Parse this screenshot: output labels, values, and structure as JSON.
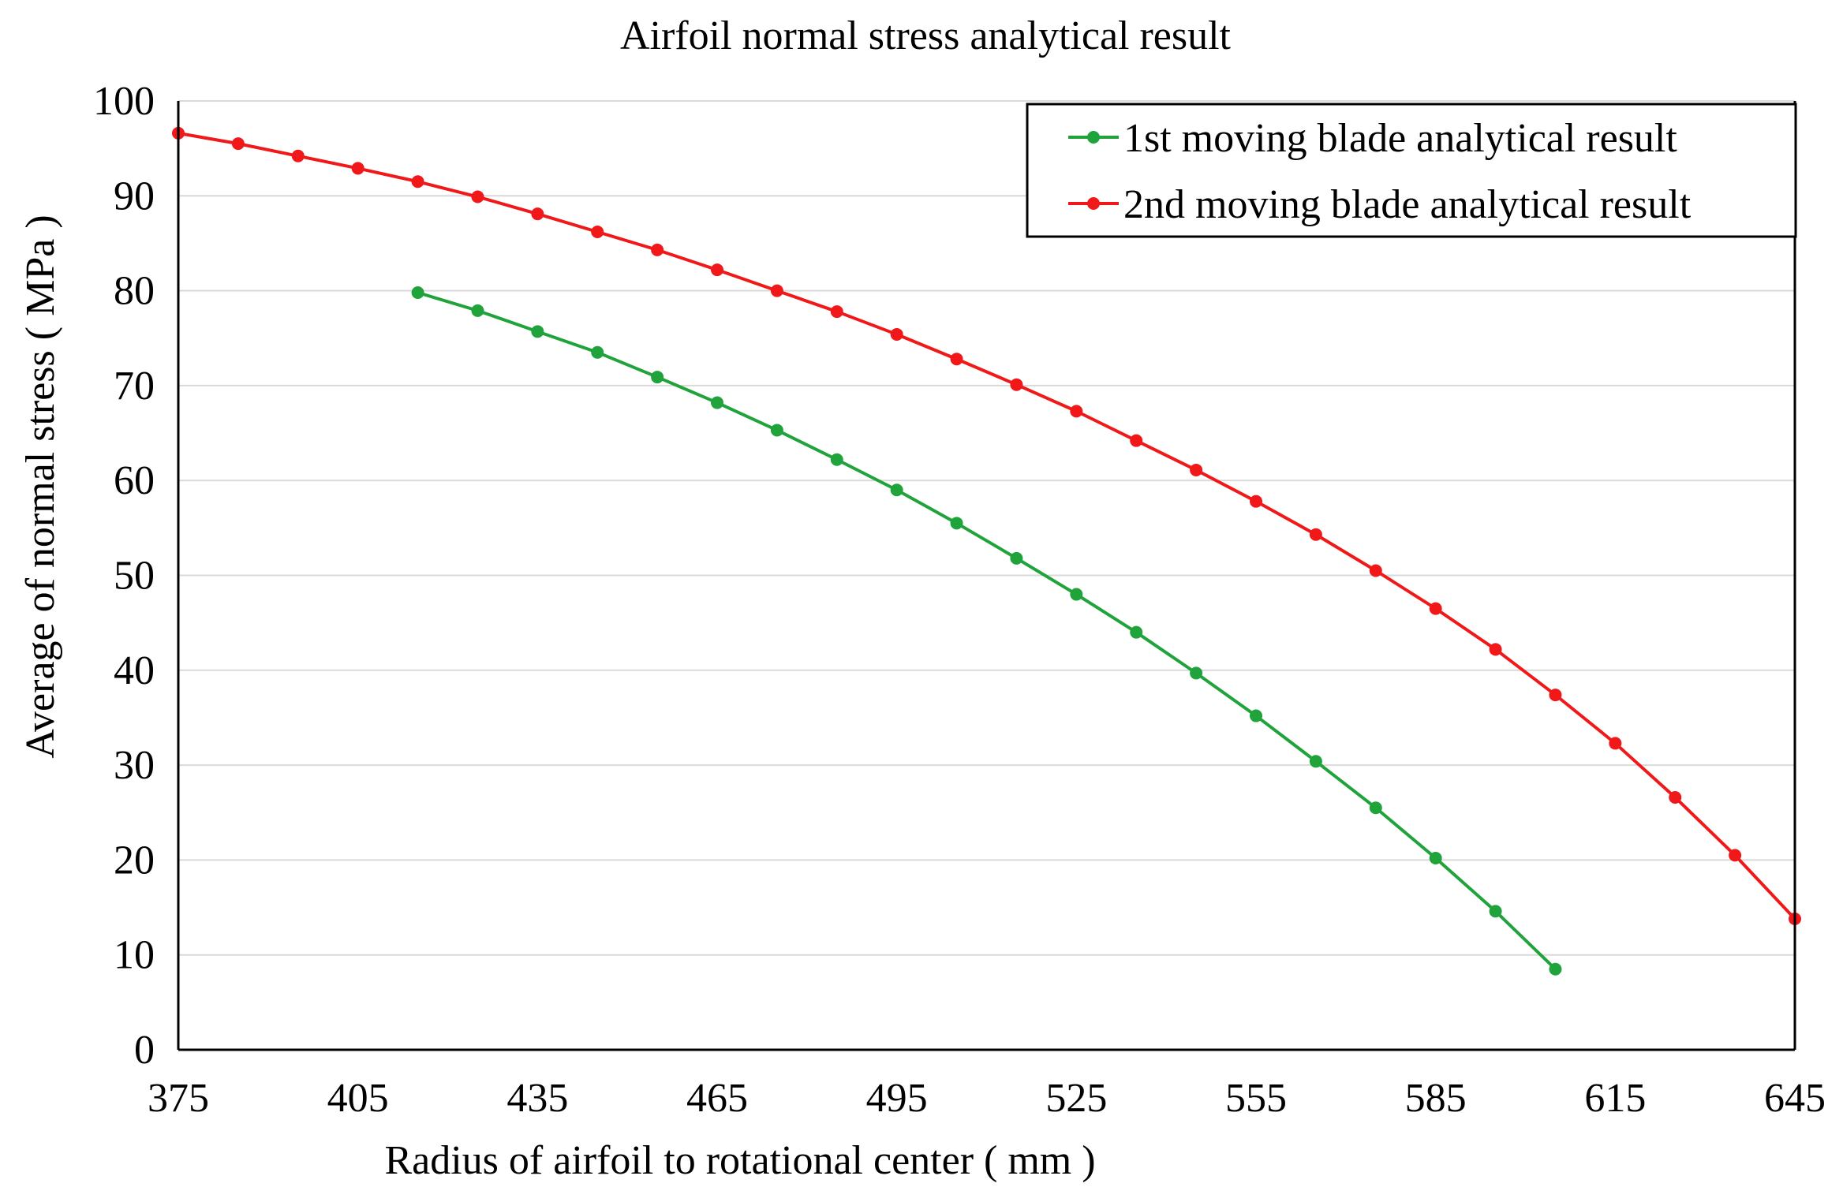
{
  "chart_data": {
    "type": "line",
    "title": "Airfoil normal stress analytical result",
    "xlabel": "Radius of airfoil to rotational center ( mm )",
    "ylabel": "Average of normal stress ( MPa )",
    "xlim": [
      375,
      645
    ],
    "ylim": [
      0,
      100
    ],
    "xticks": [
      375,
      405,
      435,
      465,
      495,
      525,
      555,
      585,
      615,
      645
    ],
    "yticks": [
      0,
      10,
      20,
      30,
      40,
      50,
      60,
      70,
      80,
      90,
      100
    ],
    "xtick_labels": [
      "375",
      "405",
      "435",
      "465",
      "495",
      "525",
      "555",
      "585",
      "615",
      "645"
    ],
    "ytick_labels": [
      "0",
      "10",
      "20",
      "30",
      "40",
      "50",
      "60",
      "70",
      "80",
      "90",
      "100"
    ],
    "grid": true,
    "legend_position": "top-right",
    "series": [
      {
        "name": "1st moving blade analytical result",
        "color": "#1fa33a",
        "x": [
          415,
          425,
          435,
          445,
          455,
          465,
          475,
          485,
          495,
          505,
          515,
          525,
          535,
          545,
          555,
          565,
          575,
          585,
          595,
          605
        ],
        "y": [
          79.8,
          77.9,
          75.7,
          73.5,
          70.9,
          68.2,
          65.3,
          62.2,
          59.0,
          55.5,
          51.8,
          48.0,
          44.0,
          39.7,
          35.2,
          30.4,
          25.5,
          20.2,
          14.6,
          8.5
        ]
      },
      {
        "name": "2nd moving blade analytical result",
        "color": "#f01818",
        "x": [
          375,
          385,
          395,
          405,
          415,
          425,
          435,
          445,
          455,
          465,
          475,
          485,
          495,
          505,
          515,
          525,
          535,
          545,
          555,
          565,
          575,
          585,
          595,
          605,
          615,
          625,
          635,
          645
        ],
        "y": [
          96.6,
          95.5,
          94.2,
          92.9,
          91.5,
          89.9,
          88.1,
          86.2,
          84.3,
          82.2,
          80.0,
          77.8,
          75.4,
          72.8,
          70.1,
          67.3,
          64.2,
          61.1,
          57.8,
          54.3,
          50.5,
          46.5,
          42.2,
          37.4,
          32.3,
          26.6,
          20.5,
          13.8
        ]
      }
    ]
  }
}
